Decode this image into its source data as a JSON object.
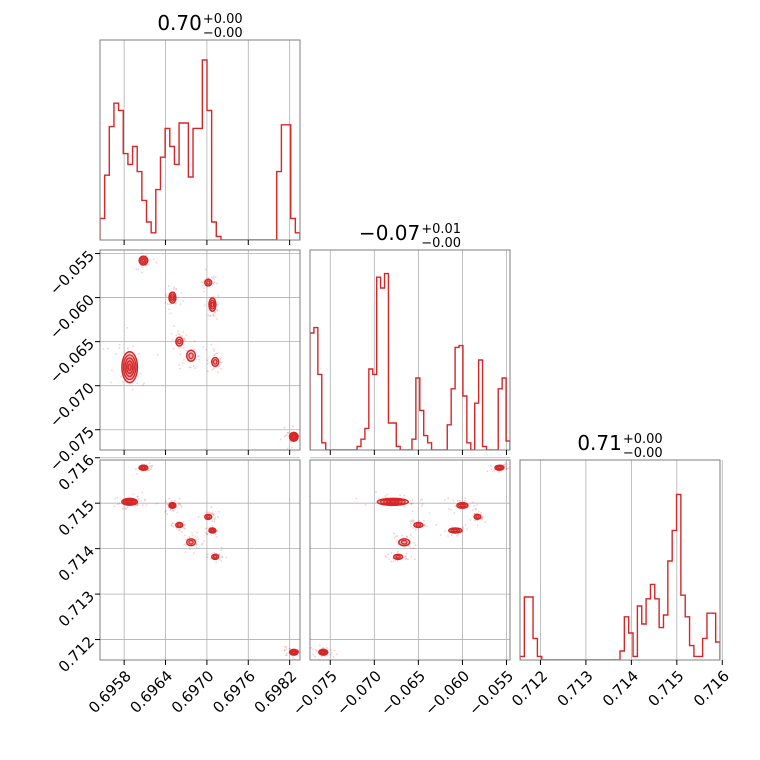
{
  "chart_data": {
    "type": "corner",
    "color": "#d62728",
    "grid": true,
    "parameters": [
      {
        "title": {
          "median": "0.70",
          "plus": "+0.00",
          "minus": "−0.00"
        },
        "range": [
          0.69545,
          0.69835
        ],
        "ticks": [
          0.6958,
          0.6964,
          0.697,
          0.6976,
          0.6982
        ],
        "tick_labels": [
          "0.6958",
          "0.6964",
          "0.6970",
          "0.6976",
          "0.6982"
        ],
        "histogram": [
          0.12,
          0.36,
          0.63,
          0.76,
          0.72,
          0.48,
          0.42,
          0.52,
          0.38,
          0.22,
          0.1,
          0.04,
          0.28,
          0.46,
          0.62,
          0.52,
          0.42,
          0.65,
          0.65,
          0.35,
          0.62,
          0.62,
          1.0,
          0.72,
          0.1,
          0.02,
          0.0,
          0.0,
          0.0,
          0.0,
          0.0,
          0.0,
          0.0,
          0.0,
          0.0,
          0.0,
          0.0,
          0.0,
          0.38,
          0.64,
          0.64,
          0.12,
          0.04
        ]
      },
      {
        "title": {
          "median": "−0.07",
          "plus": "+0.01",
          "minus": "−0.00"
        },
        "range": [
          -0.0773,
          -0.0546
        ],
        "ticks": [
          -0.075,
          -0.07,
          -0.065,
          -0.06,
          -0.055
        ],
        "tick_labels": [
          "−0.075",
          "−0.070",
          "−0.065",
          "−0.060",
          "−0.055"
        ],
        "histogram": [
          0.65,
          0.68,
          0.42,
          0.04,
          0.0,
          0.0,
          0.0,
          0.0,
          0.0,
          0.0,
          0.0,
          0.0,
          0.02,
          0.06,
          0.12,
          0.45,
          0.42,
          0.96,
          0.9,
          0.98,
          0.15,
          0.15,
          0.02,
          0.0,
          0.0,
          0.0,
          0.06,
          0.4,
          0.22,
          0.08,
          0.04,
          0.0,
          0.0,
          0.0,
          0.0,
          0.14,
          0.34,
          0.57,
          0.58,
          0.3,
          0.04,
          0.0,
          0.26,
          0.5,
          0.02,
          0.0,
          0.0,
          0.0,
          0.34,
          0.4,
          0.05
        ]
      },
      {
        "title": {
          "median": "0.71",
          "plus": "+0.00",
          "minus": "−0.00"
        },
        "range": [
          0.71155,
          0.71595
        ],
        "ticks": [
          0.712,
          0.713,
          0.714,
          0.715,
          0.716
        ],
        "tick_labels": [
          "0.712",
          "0.713",
          "0.714",
          "0.715",
          "0.716"
        ],
        "histogram": [
          0.02,
          0.35,
          0.35,
          0.12,
          0.02,
          0.0,
          0.0,
          0.0,
          0.0,
          0.0,
          0.0,
          0.0,
          0.0,
          0.0,
          0.0,
          0.0,
          0.0,
          0.0,
          0.0,
          0.0,
          0.0,
          0.0,
          0.0,
          0.05,
          0.24,
          0.15,
          0.02,
          0.3,
          0.2,
          0.34,
          0.42,
          0.34,
          0.18,
          0.25,
          0.55,
          0.72,
          0.92,
          0.36,
          0.24,
          0.08,
          0.02,
          0.02,
          0.12,
          0.26,
          0.26,
          0.1
        ]
      }
    ],
    "clusters": [
      {
        "p": [
          0.69588,
          -0.0679,
          0.71503
        ],
        "sd": [
          9e-05,
          0.0014,
          6e-05
        ],
        "n": 5
      },
      {
        "p": [
          0.69608,
          -0.0558,
          0.71578
        ],
        "sd": [
          5e-05,
          0.0004,
          4e-05
        ],
        "n": 3
      },
      {
        "p": [
          0.6965,
          -0.06,
          0.71495
        ],
        "sd": [
          4e-05,
          0.0005,
          5e-05
        ],
        "n": 3
      },
      {
        "p": [
          0.6966,
          -0.065,
          0.71452
        ],
        "sd": [
          4e-05,
          0.0004,
          4e-05
        ],
        "n": 2
      },
      {
        "p": [
          0.69677,
          -0.0666,
          0.71414
        ],
        "sd": [
          5e-05,
          0.0005,
          6e-05
        ],
        "n": 2
      },
      {
        "p": [
          0.69702,
          -0.0583,
          0.7147
        ],
        "sd": [
          4e-05,
          0.0003,
          4e-05
        ],
        "n": 2
      },
      {
        "p": [
          0.69708,
          -0.0608,
          0.7144
        ],
        "sd": [
          4e-05,
          0.0006,
          4e-05
        ],
        "n": 3
      },
      {
        "p": [
          0.69712,
          -0.0673,
          0.71382
        ],
        "sd": [
          4e-05,
          0.0004,
          4e-05
        ],
        "n": 2
      },
      {
        "p": [
          0.69826,
          -0.0758,
          0.71172
        ],
        "sd": [
          5e-05,
          0.0004,
          5e-05
        ],
        "n": 4
      }
    ]
  }
}
